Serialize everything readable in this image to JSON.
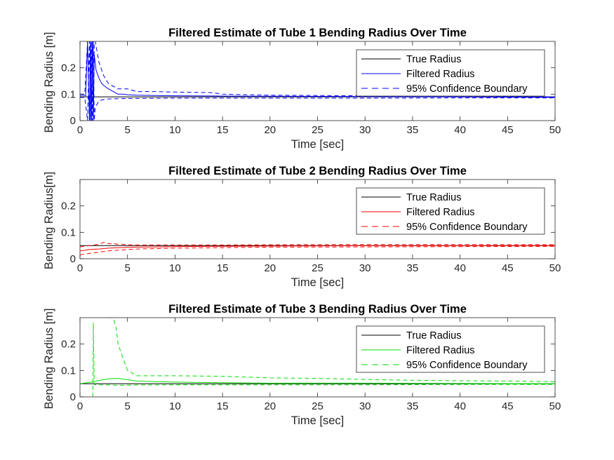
{
  "chart_data": [
    {
      "type": "line",
      "title": "Filtered Estimate of Tube 1 Bending Radius Over Time",
      "xlabel": "Time [sec]",
      "ylabel": "Bending Radius [m]",
      "xlim": [
        0,
        50
      ],
      "ylim": [
        0,
        0.3
      ],
      "xticks": [
        "0",
        "5",
        "10",
        "15",
        "20",
        "25",
        "30",
        "35",
        "40",
        "45",
        "50"
      ],
      "yticks": [
        "0",
        "0.1",
        "0.2"
      ],
      "grid": false,
      "legend_position": "top-right",
      "legend": [
        "True Radius",
        "Filtered Radius",
        "95% Confidence Boundary"
      ],
      "color": "#0000ff",
      "series": [
        {
          "name": "True Radius",
          "style": "solid-black",
          "x": [
            0,
            50
          ],
          "y": [
            0.09,
            0.09
          ]
        },
        {
          "name": "Filtered Radius",
          "style": "solid",
          "x": [
            0,
            0.3,
            0.6,
            0.8,
            1.0,
            1.1,
            1.2,
            1.3,
            1.4,
            1.5,
            1.7,
            2.0,
            2.3,
            2.6,
            3.0,
            3.5,
            4.0,
            4.5,
            5,
            6,
            8,
            10,
            15,
            20,
            30,
            40,
            50
          ],
          "y": [
            0.095,
            0.096,
            0.094,
            0.3,
            0.0,
            0.3,
            0.0,
            0.3,
            0.0,
            0.25,
            0.19,
            0.16,
            0.14,
            0.13,
            0.12,
            0.11,
            0.1,
            0.1,
            0.098,
            0.096,
            0.095,
            0.094,
            0.093,
            0.092,
            0.091,
            0.09,
            0.088
          ]
        },
        {
          "name": "95% Confidence Boundary",
          "style": "dashed",
          "x": [
            0,
            0.5,
            0.8,
            1.0,
            1.1,
            1.2,
            1.3,
            1.4,
            1.5,
            1.6,
            2.0,
            2.5,
            3.0,
            3.5,
            4.0,
            5,
            6,
            8,
            10,
            14,
            15,
            20,
            30,
            40,
            50
          ],
          "y": [
            0.1,
            0.1,
            0.3,
            0.0,
            0.3,
            0.0,
            0.3,
            0.0,
            0.3,
            0.3,
            0.22,
            0.17,
            0.14,
            0.13,
            0.12,
            0.12,
            0.11,
            0.11,
            0.108,
            0.106,
            0.1,
            0.096,
            0.094,
            0.093,
            0.09
          ]
        },
        {
          "name": "95% Confidence Boundary (lower)",
          "style": "dashed",
          "x": [
            0,
            0.5,
            0.8,
            1.0,
            1.1,
            1.2,
            1.3,
            1.4,
            1.5,
            1.6,
            2.0,
            2.5,
            3.0,
            4.0,
            5,
            10,
            20,
            30,
            40,
            50
          ],
          "y": [
            0.088,
            0.088,
            0.0,
            0.3,
            0.0,
            0.3,
            0.0,
            0.3,
            0.0,
            0.05,
            0.075,
            0.08,
            0.082,
            0.083,
            0.084,
            0.085,
            0.085,
            0.085,
            0.086,
            0.086
          ]
        }
      ]
    },
    {
      "type": "line",
      "title": "Filtered Estimate of Tube 2 Bending Radius Over Time",
      "xlabel": "Time [sec]",
      "ylabel": "Bending Radius[m]",
      "xlim": [
        0,
        50
      ],
      "ylim": [
        0,
        0.3
      ],
      "xticks": [
        "0",
        "5",
        "10",
        "15",
        "20",
        "25",
        "30",
        "35",
        "40",
        "45",
        "50"
      ],
      "yticks": [
        "0",
        "0.1",
        "0.2"
      ],
      "grid": false,
      "legend_position": "top-right",
      "legend": [
        "True Radius",
        "Filtered Radius",
        "95% Confidence Boundary"
      ],
      "color": "#ff0000",
      "series": [
        {
          "name": "True Radius",
          "style": "solid-black",
          "x": [
            0,
            50
          ],
          "y": [
            0.05,
            0.05
          ]
        },
        {
          "name": "Filtered Radius",
          "style": "solid",
          "x": [
            0,
            0.5,
            1,
            2,
            3,
            4,
            5,
            6,
            8,
            10,
            15,
            20,
            30,
            40,
            50
          ],
          "y": [
            0.03,
            0.032,
            0.035,
            0.037,
            0.04,
            0.042,
            0.043,
            0.044,
            0.045,
            0.046,
            0.047,
            0.048,
            0.049,
            0.049,
            0.05
          ]
        },
        {
          "name": "95% Confidence Boundary",
          "style": "dashed",
          "x": [
            0,
            1,
            2,
            2.5,
            3,
            3.5,
            4,
            5,
            6,
            10,
            15,
            20,
            30,
            40,
            50
          ],
          "y": [
            0.045,
            0.05,
            0.055,
            0.062,
            0.057,
            0.058,
            0.055,
            0.053,
            0.052,
            0.052,
            0.052,
            0.053,
            0.054,
            0.054,
            0.053
          ]
        },
        {
          "name": "95% Confidence Boundary (lower)",
          "style": "dashed",
          "x": [
            0,
            1,
            2,
            3,
            4,
            5,
            6,
            10,
            15,
            20,
            30,
            40,
            50
          ],
          "y": [
            0.015,
            0.02,
            0.025,
            0.03,
            0.032,
            0.035,
            0.037,
            0.04,
            0.042,
            0.044,
            0.045,
            0.046,
            0.047
          ]
        }
      ]
    },
    {
      "type": "line",
      "title": "Filtered Estimate of Tube 3 Bending Radius Over Time",
      "xlabel": "Time [sec]",
      "ylabel": "Bending Radius [m]",
      "xlim": [
        0,
        50
      ],
      "ylim": [
        0,
        0.3
      ],
      "xticks": [
        "0",
        "5",
        "10",
        "15",
        "20",
        "25",
        "30",
        "35",
        "40",
        "45",
        "50"
      ],
      "yticks": [
        "0",
        "0.1",
        "0.2"
      ],
      "grid": false,
      "legend_position": "top-right",
      "legend": [
        "True Radius",
        "Filtered Radius",
        "95% Confidence Boundary"
      ],
      "color": "#00e000",
      "series": [
        {
          "name": "True Radius",
          "style": "solid-black",
          "x": [
            0,
            50
          ],
          "y": [
            0.05,
            0.05
          ]
        },
        {
          "name": "Filtered Radius",
          "style": "solid",
          "x": [
            0,
            1,
            2,
            3,
            4,
            5,
            6,
            8,
            10,
            15,
            20,
            30,
            40,
            50
          ],
          "y": [
            0.05,
            0.055,
            0.062,
            0.068,
            0.07,
            0.065,
            0.06,
            0.058,
            0.056,
            0.054,
            0.052,
            0.052,
            0.051,
            0.05
          ]
        },
        {
          "name": "95% Confidence Boundary",
          "style": "dashed",
          "x": [
            3.0,
            3.5,
            3.8,
            4.0,
            4.5,
            5.0,
            6,
            8,
            10,
            15,
            20,
            25,
            30,
            35,
            40,
            45,
            50
          ],
          "y": [
            0.3,
            0.3,
            0.26,
            0.2,
            0.15,
            0.1,
            0.08,
            0.08,
            0.08,
            0.078,
            0.072,
            0.07,
            0.066,
            0.063,
            0.061,
            0.06,
            0.058
          ]
        },
        {
          "name": "95% Confidence Boundary (lower)",
          "style": "dashed",
          "x": [
            1.35,
            1.4,
            1.5,
            2,
            3,
            4,
            5,
            6,
            8,
            10,
            15,
            20,
            30,
            40,
            50
          ],
          "y": [
            0.0,
            0.28,
            0.047,
            0.046,
            0.045,
            0.044,
            0.044,
            0.045,
            0.045,
            0.046,
            0.046,
            0.046,
            0.046,
            0.047,
            0.047
          ]
        }
      ]
    }
  ]
}
